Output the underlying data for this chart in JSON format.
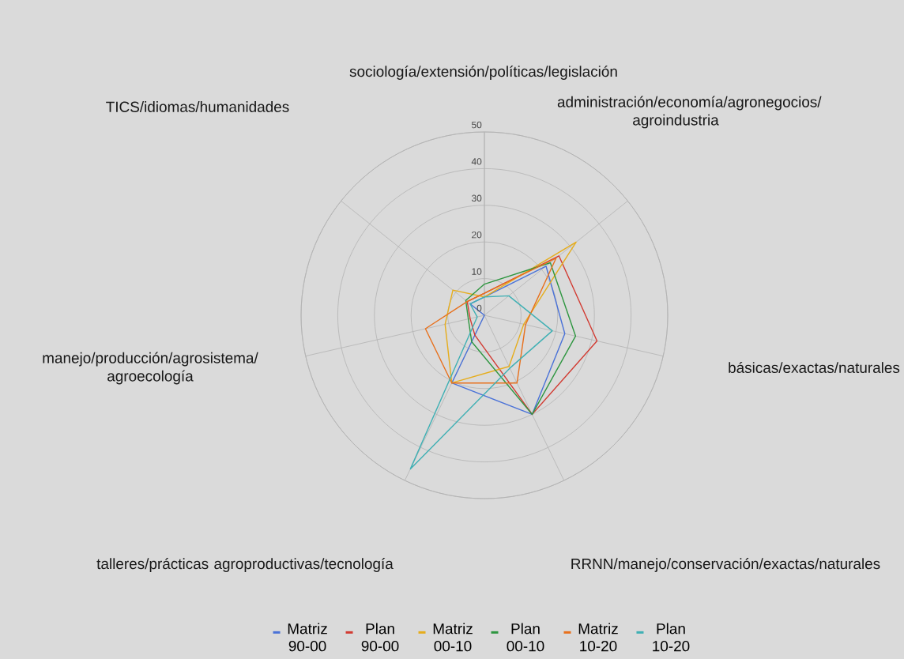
{
  "chart_data": {
    "type": "radar",
    "categories": [
      "sociología/extensión/políticas/legislación",
      "administración/economía/agronegocios/ agroindustria",
      "básicas/exactas/naturales",
      "RRNN/manejo/conservación/exactas/naturales",
      "talleres/prácticas agroproductivas/tecnología",
      "manejo/producción/agrosistema/ agroecología",
      "TICS/idiomas/humanidades"
    ],
    "series": [
      {
        "name": "Matriz 90-00",
        "color": "#4a72d8",
        "values": [
          5,
          21.5,
          22.5,
          30,
          20.5,
          0,
          5
        ]
      },
      {
        "name": "Plan 90-00",
        "color": "#d23b32",
        "values": [
          6,
          26,
          31.5,
          30,
          6,
          4,
          6
        ]
      },
      {
        "name": "Matriz 00-10",
        "color": "#e6ad1c",
        "values": [
          5,
          32,
          11,
          15.5,
          20.5,
          11,
          11
        ]
      },
      {
        "name": "Plan 00-10",
        "color": "#2e9640",
        "values": [
          8.5,
          23,
          25.5,
          30,
          8,
          4.5,
          6.5
        ]
      },
      {
        "name": "Matriz 10-20",
        "color": "#e8701c",
        "values": [
          6,
          25,
          11.5,
          20.5,
          20.5,
          16.5,
          6
        ]
      },
      {
        "name": "Plan 10-20",
        "color": "#3fb0b4",
        "values": [
          5,
          8.5,
          19,
          16,
          46.5,
          2,
          5
        ]
      }
    ],
    "ylim": [
      0,
      50
    ],
    "yticks": [
      0,
      10,
      20,
      30,
      40,
      50
    ],
    "grid": true,
    "legend": "bottom"
  }
}
